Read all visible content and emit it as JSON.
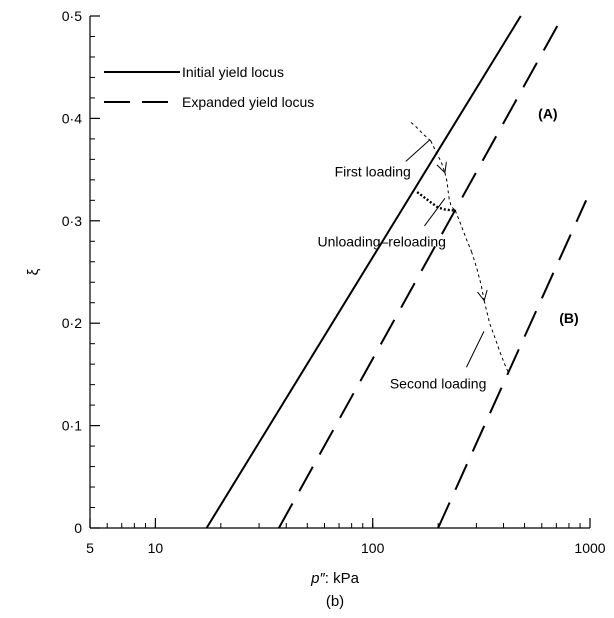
{
  "chart_data": {
    "type": "line",
    "panel_label": "(b)",
    "xlabel_prefix": "p″",
    "xlabel_suffix": ": kPa",
    "ylabel": "ξ",
    "x_scale": "log",
    "xlim": [
      5,
      1000
    ],
    "ylim": [
      0,
      0.5
    ],
    "x_ticks": [
      {
        "value": 5,
        "label": "5"
      },
      {
        "value": 10,
        "label": "10"
      },
      {
        "value": 100,
        "label": "100"
      },
      {
        "value": 1000,
        "label": "1000"
      }
    ],
    "y_ticks": [
      {
        "value": 0,
        "label": "0"
      },
      {
        "value": 0.1,
        "label": "0·1"
      },
      {
        "value": 0.2,
        "label": "0·2"
      },
      {
        "value": 0.3,
        "label": "0·3"
      },
      {
        "value": 0.4,
        "label": "0·4"
      },
      {
        "value": 0.5,
        "label": "0·5"
      }
    ],
    "grid": false,
    "legend": {
      "placement": "top-left",
      "entries": [
        {
          "label": "Initial yield locus",
          "style": "solid"
        },
        {
          "label": "Expanded yield locus",
          "style": "dashed"
        }
      ]
    },
    "lines": [
      {
        "style": "solid",
        "points": [
          [
            17.2,
            0
          ],
          [
            480,
            0.5
          ]
        ]
      },
      {
        "style": "dashed",
        "points": [
          [
            37,
            0
          ],
          [
            750,
            0.5
          ]
        ]
      },
      {
        "style": "dashed",
        "points": [
          [
            200,
            0
          ],
          [
            960,
            0.32
          ]
        ]
      }
    ],
    "path_segments": [
      {
        "style": "thin-dashed",
        "arrow": false,
        "points": [
          [
            150,
            0.396
          ],
          [
            158,
            0.392
          ],
          [
            170,
            0.385
          ],
          [
            185,
            0.378
          ]
        ]
      },
      {
        "style": "thin-dashed",
        "arrow": true,
        "points": [
          [
            185,
            0.378
          ],
          [
            195,
            0.368
          ],
          [
            207,
            0.357
          ],
          [
            215,
            0.347
          ]
        ]
      },
      {
        "style": "thin-dashed",
        "arrow": false,
        "points": [
          [
            215,
            0.347
          ],
          [
            220,
            0.338
          ],
          [
            222,
            0.33
          ],
          [
            225,
            0.321
          ],
          [
            230,
            0.314
          ],
          [
            240,
            0.31
          ]
        ]
      },
      {
        "style": "thick-dotted",
        "arrow": false,
        "points": [
          [
            160,
            0.328
          ],
          [
            170,
            0.324
          ],
          [
            185,
            0.318
          ],
          [
            200,
            0.313
          ],
          [
            215,
            0.311
          ],
          [
            240,
            0.31
          ]
        ]
      },
      {
        "style": "thin-dashed",
        "arrow": false,
        "points": [
          [
            240,
            0.31
          ],
          [
            255,
            0.296
          ],
          [
            270,
            0.282
          ],
          [
            285,
            0.27
          ]
        ]
      },
      {
        "style": "thin-dashed",
        "arrow": true,
        "points": [
          [
            285,
            0.27
          ],
          [
            300,
            0.255
          ],
          [
            315,
            0.238
          ],
          [
            326,
            0.222
          ]
        ]
      },
      {
        "style": "thin-dashed",
        "arrow": false,
        "points": [
          [
            326,
            0.222
          ],
          [
            345,
            0.2
          ],
          [
            365,
            0.186
          ],
          [
            385,
            0.172
          ],
          [
            405,
            0.16
          ],
          [
            425,
            0.15
          ]
        ]
      }
    ],
    "annotations": [
      {
        "text": "(A)",
        "x": 640,
        "y": 0.405,
        "bold": true
      },
      {
        "text": "(B)",
        "x": 800,
        "y": 0.205,
        "bold": true
      },
      {
        "text": "First loading",
        "x": 100,
        "y": 0.348,
        "bold": false,
        "leader": [
          [
            142,
            0.358
          ],
          [
            183,
            0.379
          ]
        ]
      },
      {
        "text": "Unloading–reloading",
        "x": 110,
        "y": 0.28,
        "bold": false,
        "leader": [
          [
            173,
            0.295
          ],
          [
            215,
            0.322
          ]
        ]
      },
      {
        "text": "Second loading",
        "x": 200,
        "y": 0.141,
        "bold": false,
        "leader": [
          [
            270,
            0.157
          ],
          [
            325,
            0.192
          ]
        ]
      }
    ]
  }
}
